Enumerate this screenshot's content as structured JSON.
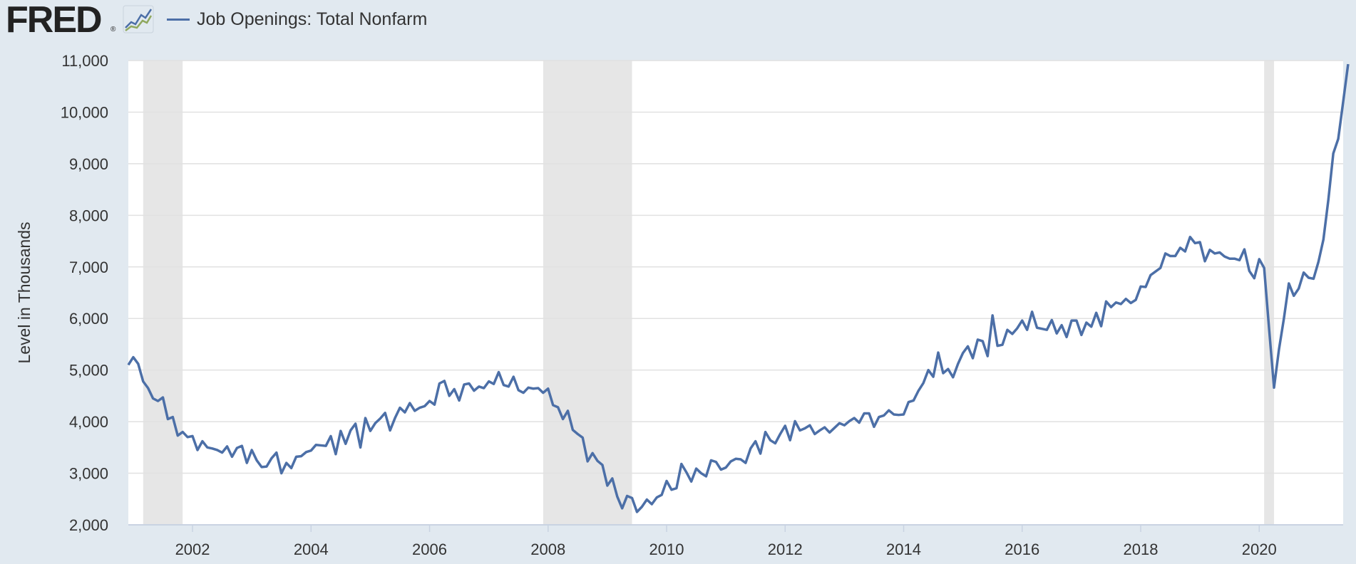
{
  "header": {
    "logo_text": "FRED",
    "logo_mark": "®",
    "graph_icon": "line-graph-icon",
    "legend_label": "Job Openings: Total Nonfarm"
  },
  "colors": {
    "background": "#e1e9f0",
    "plot_background": "#ffffff",
    "series_line": "#4c6fa7",
    "recession_shade": "#e6e6e6",
    "grid": "#e1e1e1",
    "tick_text": "#333333"
  },
  "chart_data": {
    "type": "line",
    "title": "",
    "xlabel": "",
    "ylabel": "Level in Thousands",
    "ylim": [
      2000,
      11000
    ],
    "yticks": [
      2000,
      3000,
      4000,
      5000,
      6000,
      7000,
      8000,
      9000,
      10000,
      11000
    ],
    "ytick_labels": [
      "2,000",
      "3,000",
      "4,000",
      "5,000",
      "6,000",
      "7,000",
      "8,000",
      "9,000",
      "10,000",
      "11,000"
    ],
    "xlim": [
      "2000-12-01",
      "2021-06-01"
    ],
    "xticks": [
      "2002",
      "2004",
      "2006",
      "2008",
      "2010",
      "2012",
      "2014",
      "2016",
      "2018",
      "2020"
    ],
    "grid": "horizontal",
    "legend": "top-left",
    "recessions": [
      {
        "start": "2001-03",
        "end": "2001-11"
      },
      {
        "start": "2007-12",
        "end": "2009-06"
      },
      {
        "start": "2020-02",
        "end": "2020-04"
      }
    ],
    "series": [
      {
        "name": "Job Openings: Total Nonfarm",
        "start": "2000-12",
        "frequency": "monthly",
        "values": [
          5100,
          5250,
          5120,
          4780,
          4650,
          4450,
          4400,
          4470,
          4050,
          4090,
          3730,
          3800,
          3700,
          3720,
          3450,
          3620,
          3500,
          3480,
          3450,
          3400,
          3520,
          3320,
          3490,
          3530,
          3200,
          3450,
          3250,
          3120,
          3130,
          3290,
          3400,
          3000,
          3200,
          3100,
          3320,
          3330,
          3410,
          3440,
          3550,
          3540,
          3530,
          3720,
          3370,
          3820,
          3570,
          3830,
          3960,
          3500,
          4070,
          3820,
          3970,
          4060,
          4170,
          3830,
          4070,
          4270,
          4180,
          4360,
          4210,
          4270,
          4300,
          4400,
          4330,
          4740,
          4790,
          4500,
          4630,
          4410,
          4720,
          4740,
          4600,
          4680,
          4650,
          4780,
          4730,
          4960,
          4710,
          4680,
          4870,
          4610,
          4560,
          4660,
          4640,
          4650,
          4560,
          4640,
          4320,
          4280,
          4050,
          4210,
          3840,
          3760,
          3690,
          3230,
          3390,
          3240,
          3160,
          2760,
          2900,
          2550,
          2320,
          2560,
          2520,
          2250,
          2350,
          2490,
          2400,
          2530,
          2580,
          2850,
          2680,
          2710,
          3180,
          3020,
          2840,
          3090,
          3000,
          2940,
          3250,
          3220,
          3070,
          3110,
          3230,
          3280,
          3270,
          3200,
          3480,
          3620,
          3380,
          3800,
          3640,
          3580,
          3760,
          3920,
          3640,
          4010,
          3830,
          3870,
          3930,
          3760,
          3830,
          3890,
          3790,
          3880,
          3970,
          3930,
          4010,
          4070,
          3980,
          4160,
          4160,
          3900,
          4090,
          4120,
          4220,
          4140,
          4130,
          4140,
          4380,
          4410,
          4600,
          4750,
          5000,
          4870,
          5340,
          4940,
          5020,
          4860,
          5120,
          5330,
          5460,
          5230,
          5590,
          5560,
          5270,
          6060,
          5470,
          5490,
          5780,
          5700,
          5810,
          5960,
          5780,
          6130,
          5820,
          5800,
          5780,
          5970,
          5710,
          5870,
          5640,
          5960,
          5960,
          5680,
          5920,
          5840,
          6110,
          5850,
          6330,
          6220,
          6310,
          6280,
          6380,
          6300,
          6360,
          6620,
          6610,
          6840,
          6910,
          6980,
          7260,
          7210,
          7210,
          7370,
          7300,
          7580,
          7460,
          7480,
          7110,
          7330,
          7260,
          7280,
          7200,
          7160,
          7160,
          7130,
          7340,
          6920,
          6780,
          7150,
          6980,
          5800,
          4660,
          5400,
          6000,
          6680,
          6440,
          6580,
          6890,
          6790,
          6770,
          7100,
          7530,
          8300,
          9200,
          9480,
          10200,
          10930
        ]
      }
    ]
  }
}
